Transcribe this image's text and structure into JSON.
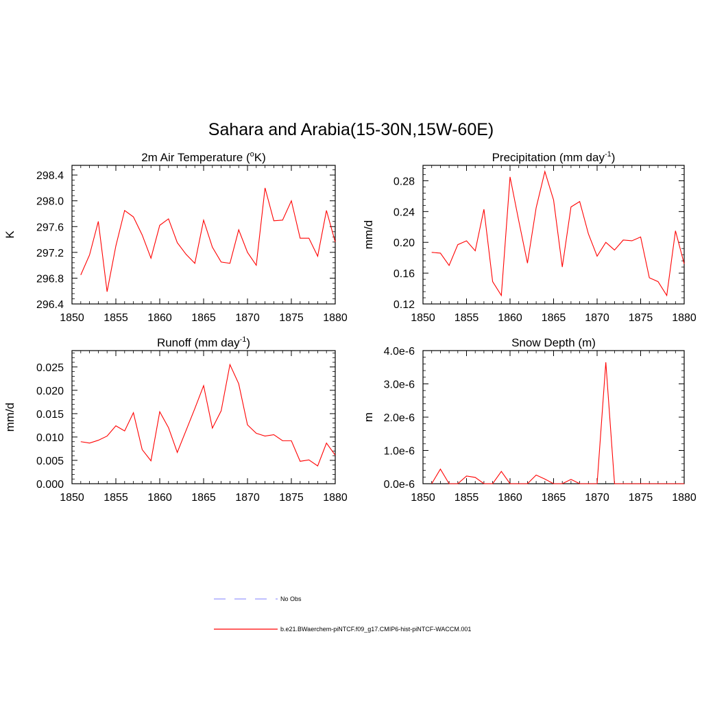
{
  "figure": {
    "title": "Sahara and Arabia(15-30N,15W-60E)",
    "line_color": "#ff0000",
    "obs_color": "#9999ff"
  },
  "legend": {
    "entries": [
      {
        "label": "No Obs",
        "style": "dashed",
        "color": "#9999ff"
      },
      {
        "label": "b.e21.BWaerchem-piNTCF.f09_g17.CMIP6-hist-piNTCF-WACCM.001",
        "style": "solid",
        "color": "#ff0000"
      }
    ]
  },
  "chart_data": [
    {
      "type": "line",
      "title_main": "2m Air Temperature (",
      "title_sup": "o",
      "title_tail": "K)",
      "ylabel": "K",
      "xlim": [
        1850,
        1880
      ],
      "ylim": [
        296.4,
        298.55
      ],
      "xticks": [
        1850,
        1855,
        1860,
        1865,
        1870,
        1875,
        1880
      ],
      "yticks": [
        296.4,
        296.8,
        297.2,
        297.6,
        298.0,
        298.4
      ],
      "ytick_labels": [
        "296.4",
        "296.8",
        "297.2",
        "297.6",
        "298.0",
        "298.4"
      ],
      "series": [
        {
          "x": [
            1851,
            1852,
            1853,
            1854,
            1855,
            1856,
            1857,
            1858,
            1859,
            1860,
            1861,
            1862,
            1863,
            1864,
            1865,
            1866,
            1867,
            1868,
            1869,
            1870,
            1871,
            1872,
            1873,
            1874,
            1875,
            1876,
            1877,
            1878,
            1879,
            1880
          ],
          "values": [
            296.85,
            297.16,
            297.68,
            296.59,
            297.3,
            297.85,
            297.75,
            297.47,
            297.11,
            297.62,
            297.72,
            297.35,
            297.17,
            297.03,
            297.7,
            297.28,
            297.05,
            297.03,
            297.55,
            297.2,
            297.0,
            298.2,
            297.69,
            297.7,
            298.0,
            297.42,
            297.42,
            297.14,
            297.85,
            297.36
          ]
        }
      ]
    },
    {
      "type": "line",
      "title_main": "Precipitation (mm day",
      "title_sup": "-1",
      "title_tail": ")",
      "ylabel": "mm/d",
      "xlim": [
        1850,
        1880
      ],
      "ylim": [
        0.12,
        0.3
      ],
      "xticks": [
        1850,
        1855,
        1860,
        1865,
        1870,
        1875,
        1880
      ],
      "yticks": [
        0.12,
        0.16,
        0.2,
        0.24,
        0.28
      ],
      "ytick_labels": [
        "0.12",
        "0.16",
        "0.20",
        "0.24",
        "0.28"
      ],
      "series": [
        {
          "x": [
            1851,
            1852,
            1853,
            1854,
            1855,
            1856,
            1857,
            1858,
            1859,
            1860,
            1861,
            1862,
            1863,
            1864,
            1865,
            1866,
            1867,
            1868,
            1869,
            1870,
            1871,
            1872,
            1873,
            1874,
            1875,
            1876,
            1877,
            1878,
            1879,
            1880
          ],
          "values": [
            0.187,
            0.186,
            0.17,
            0.197,
            0.202,
            0.189,
            0.243,
            0.149,
            0.131,
            0.285,
            0.228,
            0.173,
            0.245,
            0.292,
            0.255,
            0.168,
            0.246,
            0.253,
            0.211,
            0.182,
            0.2,
            0.19,
            0.203,
            0.202,
            0.207,
            0.154,
            0.149,
            0.131,
            0.215,
            0.172
          ]
        }
      ]
    },
    {
      "type": "line",
      "title_main": "Runoff (mm day",
      "title_sup": "-1",
      "title_tail": ")",
      "ylabel": "mm/d",
      "xlim": [
        1850,
        1880
      ],
      "ylim": [
        0.0,
        0.0285
      ],
      "xticks": [
        1850,
        1855,
        1860,
        1865,
        1870,
        1875,
        1880
      ],
      "yticks": [
        0.0,
        0.005,
        0.01,
        0.015,
        0.02,
        0.025
      ],
      "ytick_labels": [
        "0.000",
        "0.005",
        "0.010",
        "0.015",
        "0.020",
        "0.025"
      ],
      "series": [
        {
          "x": [
            1851,
            1852,
            1853,
            1854,
            1855,
            1856,
            1857,
            1858,
            1859,
            1860,
            1861,
            1862,
            1863,
            1864,
            1865,
            1866,
            1867,
            1868,
            1869,
            1870,
            1871,
            1872,
            1873,
            1874,
            1875,
            1876,
            1877,
            1878,
            1879,
            1880
          ],
          "values": [
            0.009,
            0.0087,
            0.0093,
            0.0102,
            0.0124,
            0.0113,
            0.0152,
            0.0073,
            0.0049,
            0.0154,
            0.012,
            0.0067,
            0.0114,
            0.0161,
            0.021,
            0.0119,
            0.0156,
            0.0255,
            0.0214,
            0.0126,
            0.0108,
            0.0102,
            0.0105,
            0.0092,
            0.0092,
            0.0048,
            0.0051,
            0.0038,
            0.0087,
            0.0061
          ]
        }
      ]
    },
    {
      "type": "line",
      "title_main": "Snow Depth (m)",
      "title_sup": "",
      "title_tail": "",
      "ylabel": "m",
      "xlim": [
        1850,
        1880
      ],
      "ylim": [
        0.0,
        4e-06
      ],
      "xticks": [
        1850,
        1855,
        1860,
        1865,
        1870,
        1875,
        1880
      ],
      "yticks": [
        0.0,
        1e-06,
        2e-06,
        3e-06,
        4e-06
      ],
      "ytick_labels": [
        "0.0e-6",
        "1.0e-6",
        "2.0e-6",
        "3.0e-6",
        "4.0e-6"
      ],
      "series": [
        {
          "x": [
            1851,
            1852,
            1853,
            1854,
            1855,
            1856,
            1857,
            1858,
            1859,
            1860,
            1861,
            1862,
            1863,
            1864,
            1865,
            1866,
            1867,
            1868,
            1869,
            1870,
            1871,
            1872,
            1873,
            1874,
            1875,
            1876,
            1877,
            1878,
            1879,
            1880
          ],
          "values": [
            0.0,
            4.4e-07,
            0.0,
            0.0,
            2.3e-07,
            1.9e-07,
            0.0,
            0.0,
            3.7e-07,
            0.0,
            0.0,
            0.0,
            2.6e-07,
            1.4e-07,
            0.0,
            0.0,
            1.3e-07,
            0.0,
            0.0,
            0.0,
            3.65e-06,
            0.0,
            0.0,
            0.0,
            0.0,
            0.0,
            0.0,
            0.0,
            0.0,
            0.0
          ]
        }
      ]
    }
  ]
}
